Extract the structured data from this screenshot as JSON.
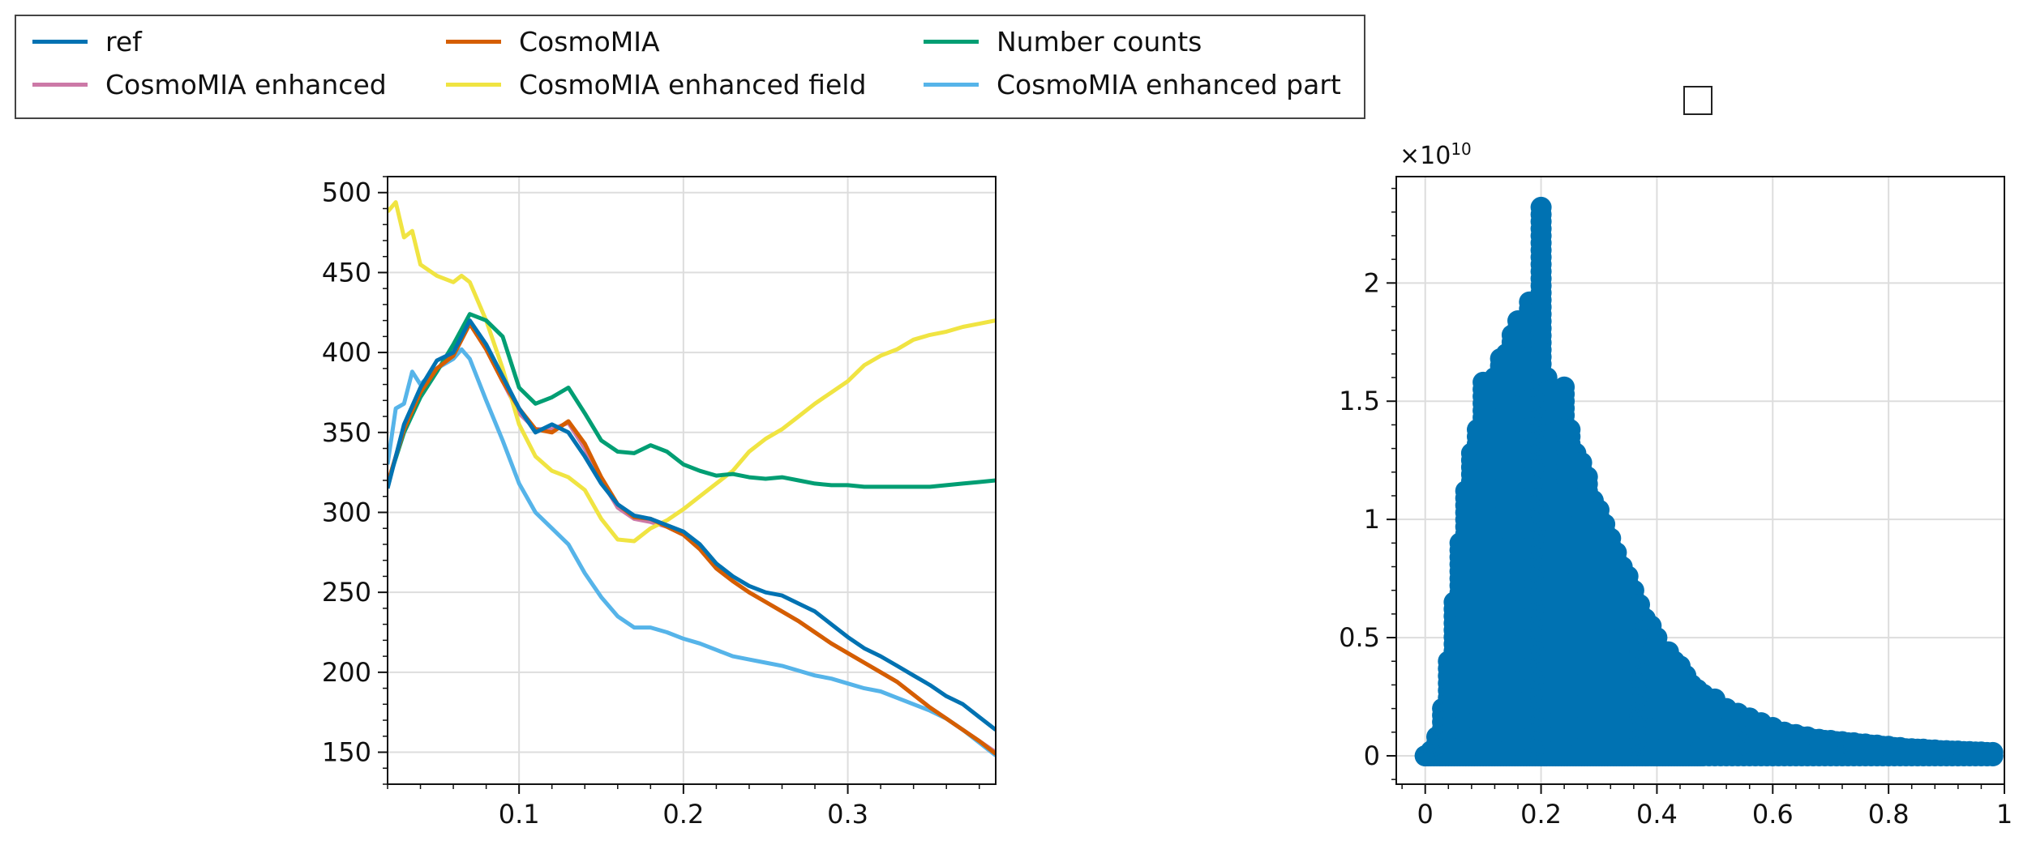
{
  "legend": {
    "entries": [
      {
        "label": "ref",
        "color": "#0072B2"
      },
      {
        "label": "CosmoMIA enhanced",
        "color": "#CC79A7"
      },
      {
        "label": "CosmoMIA",
        "color": "#D55E00"
      },
      {
        "label": "CosmoMIA enhanced field",
        "color": "#F0E442"
      },
      {
        "label": "Number counts",
        "color": "#009E73"
      },
      {
        "label": "CosmoMIA enhanced part",
        "color": "#56B4E9"
      }
    ]
  },
  "chart_data": [
    {
      "type": "line",
      "xlim": [
        0.02,
        0.39
      ],
      "ylim": [
        130,
        510
      ],
      "xticks": [
        0.1,
        0.2,
        0.3
      ],
      "xtick_labels": [
        "0.1",
        "0.2",
        "0.3"
      ],
      "yticks": [
        150,
        200,
        250,
        300,
        350,
        400,
        450,
        500
      ],
      "ytick_labels": [
        "150",
        "200",
        "250",
        "300",
        "350",
        "400",
        "450",
        "500"
      ],
      "grid": true,
      "series": [
        {
          "name": "ref",
          "color": "#0072B2",
          "x": [
            0.02,
            0.03,
            0.04,
            0.05,
            0.06,
            0.07,
            0.08,
            0.09,
            0.1,
            0.11,
            0.12,
            0.13,
            0.14,
            0.15,
            0.16,
            0.17,
            0.18,
            0.19,
            0.2,
            0.21,
            0.22,
            0.23,
            0.24,
            0.25,
            0.26,
            0.27,
            0.28,
            0.29,
            0.3,
            0.31,
            0.32,
            0.33,
            0.34,
            0.35,
            0.36,
            0.37,
            0.38,
            0.39
          ],
          "y": [
            315,
            355,
            378,
            395,
            400,
            420,
            405,
            385,
            365,
            350,
            355,
            350,
            335,
            318,
            305,
            298,
            296,
            292,
            288,
            280,
            268,
            260,
            254,
            250,
            248,
            243,
            238,
            230,
            222,
            215,
            210,
            204,
            198,
            192,
            185,
            180,
            172,
            164
          ]
        },
        {
          "name": "CosmoMIA enhanced",
          "color": "#CC79A7",
          "x": [
            0.02,
            0.03,
            0.04,
            0.05,
            0.06,
            0.07,
            0.08,
            0.09,
            0.1,
            0.11,
            0.12,
            0.13,
            0.14,
            0.15,
            0.16,
            0.17,
            0.18,
            0.19,
            0.2,
            0.21,
            0.22,
            0.23,
            0.24,
            0.25,
            0.26,
            0.27,
            0.28,
            0.29,
            0.3,
            0.31,
            0.32,
            0.33,
            0.34,
            0.35,
            0.36,
            0.37,
            0.38,
            0.39
          ],
          "y": [
            318,
            352,
            375,
            390,
            398,
            418,
            402,
            382,
            362,
            352,
            352,
            356,
            340,
            320,
            303,
            296,
            294,
            291,
            286,
            277,
            265,
            257,
            250,
            244,
            238,
            232,
            225,
            218,
            212,
            206,
            200,
            194,
            186,
            178,
            171,
            164,
            157,
            150
          ]
        },
        {
          "name": "CosmoMIA",
          "color": "#D55E00",
          "x": [
            0.02,
            0.03,
            0.04,
            0.05,
            0.06,
            0.07,
            0.08,
            0.09,
            0.1,
            0.11,
            0.12,
            0.13,
            0.14,
            0.15,
            0.16,
            0.17,
            0.18,
            0.19,
            0.2,
            0.21,
            0.22,
            0.23,
            0.24,
            0.25,
            0.26,
            0.27,
            0.28,
            0.29,
            0.3,
            0.31,
            0.32,
            0.33,
            0.34,
            0.35,
            0.36,
            0.37,
            0.38,
            0.39
          ],
          "y": [
            318,
            352,
            375,
            390,
            398,
            418,
            402,
            382,
            365,
            352,
            350,
            357,
            343,
            322,
            305,
            297,
            296,
            291,
            286,
            277,
            265,
            257,
            250,
            244,
            238,
            232,
            225,
            218,
            212,
            206,
            200,
            194,
            186,
            178,
            171,
            164,
            157,
            149
          ]
        },
        {
          "name": "CosmoMIA enhanced field",
          "color": "#F0E442",
          "x": [
            0.02,
            0.025,
            0.03,
            0.035,
            0.04,
            0.05,
            0.06,
            0.065,
            0.07,
            0.08,
            0.09,
            0.1,
            0.11,
            0.12,
            0.13,
            0.14,
            0.15,
            0.16,
            0.17,
            0.18,
            0.19,
            0.2,
            0.21,
            0.22,
            0.23,
            0.24,
            0.25,
            0.26,
            0.27,
            0.28,
            0.29,
            0.3,
            0.31,
            0.32,
            0.33,
            0.34,
            0.35,
            0.36,
            0.37,
            0.38,
            0.39
          ],
          "y": [
            488,
            494,
            472,
            476,
            455,
            448,
            444,
            448,
            444,
            420,
            390,
            355,
            335,
            326,
            322,
            314,
            296,
            283,
            282,
            290,
            295,
            302,
            310,
            318,
            326,
            338,
            346,
            352,
            360,
            368,
            375,
            382,
            392,
            398,
            402,
            408,
            411,
            413,
            416,
            418,
            420
          ]
        },
        {
          "name": "Number counts",
          "color": "#009E73",
          "x": [
            0.02,
            0.03,
            0.04,
            0.05,
            0.06,
            0.07,
            0.08,
            0.09,
            0.1,
            0.11,
            0.12,
            0.13,
            0.14,
            0.15,
            0.16,
            0.17,
            0.18,
            0.19,
            0.2,
            0.21,
            0.22,
            0.23,
            0.24,
            0.25,
            0.26,
            0.27,
            0.28,
            0.29,
            0.3,
            0.31,
            0.32,
            0.33,
            0.34,
            0.35,
            0.36,
            0.37,
            0.38,
            0.39
          ],
          "y": [
            318,
            350,
            372,
            388,
            405,
            424,
            420,
            410,
            378,
            368,
            372,
            378,
            362,
            345,
            338,
            337,
            342,
            338,
            330,
            326,
            323,
            324,
            322,
            321,
            322,
            320,
            318,
            317,
            317,
            316,
            316,
            316,
            316,
            316,
            317,
            318,
            319,
            320
          ]
        },
        {
          "name": "CosmoMIA enhanced part",
          "color": "#56B4E9",
          "x": [
            0.02,
            0.025,
            0.03,
            0.035,
            0.04,
            0.05,
            0.06,
            0.065,
            0.07,
            0.08,
            0.09,
            0.1,
            0.11,
            0.12,
            0.13,
            0.14,
            0.15,
            0.16,
            0.17,
            0.18,
            0.19,
            0.2,
            0.21,
            0.22,
            0.23,
            0.24,
            0.25,
            0.26,
            0.27,
            0.28,
            0.29,
            0.3,
            0.31,
            0.32,
            0.33,
            0.34,
            0.35,
            0.36,
            0.37,
            0.38,
            0.39
          ],
          "y": [
            330,
            365,
            368,
            388,
            380,
            390,
            396,
            402,
            396,
            370,
            345,
            318,
            300,
            290,
            280,
            262,
            247,
            235,
            228,
            228,
            225,
            221,
            218,
            214,
            210,
            208,
            206,
            204,
            201,
            198,
            196,
            193,
            190,
            188,
            184,
            180,
            176,
            171,
            164,
            156,
            148
          ]
        }
      ]
    },
    {
      "type": "scatter",
      "xlim": [
        -0.05,
        1.0
      ],
      "ylim": [
        -0.12,
        2.45
      ],
      "xticks": [
        0,
        0.2,
        0.4,
        0.6,
        0.8,
        1
      ],
      "xtick_labels": [
        "0",
        "0.2",
        "0.4",
        "0.6",
        "0.8",
        "1"
      ],
      "yticks": [
        0,
        0.5,
        1,
        1.5,
        2
      ],
      "ytick_labels": [
        "0",
        "0.5",
        "1",
        "1.5",
        "2"
      ],
      "y_scale_label": "×10",
      "y_scale_exponent": "10",
      "title_box": "",
      "grid": true,
      "marker_color": "#0072B2",
      "series": [
        {
          "points": [
            [
              0.0,
              0.0
            ],
            [
              0.01,
              0.02
            ],
            [
              0.02,
              0.08
            ],
            [
              0.03,
              0.2
            ],
            [
              0.04,
              0.4
            ],
            [
              0.05,
              0.65
            ],
            [
              0.06,
              0.9
            ],
            [
              0.07,
              1.12
            ],
            [
              0.08,
              1.28
            ],
            [
              0.09,
              1.38
            ],
            [
              0.1,
              1.58
            ],
            [
              0.11,
              1.5
            ],
            [
              0.12,
              1.6
            ],
            [
              0.13,
              1.68
            ],
            [
              0.14,
              1.7
            ],
            [
              0.15,
              1.78
            ],
            [
              0.16,
              1.84
            ],
            [
              0.17,
              1.76
            ],
            [
              0.18,
              1.92
            ],
            [
              0.19,
              1.76
            ],
            [
              0.2,
              2.32
            ],
            [
              0.21,
              1.6
            ],
            [
              0.22,
              1.55
            ],
            [
              0.23,
              1.5
            ],
            [
              0.24,
              1.56
            ],
            [
              0.25,
              1.38
            ],
            [
              0.26,
              1.28
            ],
            [
              0.27,
              1.24
            ],
            [
              0.28,
              1.18
            ],
            [
              0.29,
              1.08
            ],
            [
              0.3,
              1.04
            ],
            [
              0.31,
              0.98
            ],
            [
              0.32,
              0.92
            ],
            [
              0.33,
              0.86
            ],
            [
              0.34,
              0.8
            ],
            [
              0.35,
              0.76
            ],
            [
              0.36,
              0.7
            ],
            [
              0.37,
              0.64
            ],
            [
              0.38,
              0.58
            ],
            [
              0.39,
              0.55
            ],
            [
              0.4,
              0.5
            ],
            [
              0.41,
              0.44
            ],
            [
              0.42,
              0.44
            ],
            [
              0.43,
              0.4
            ],
            [
              0.44,
              0.38
            ],
            [
              0.45,
              0.34
            ],
            [
              0.46,
              0.3
            ],
            [
              0.47,
              0.28
            ],
            [
              0.48,
              0.26
            ],
            [
              0.5,
              0.24
            ],
            [
              0.52,
              0.2
            ],
            [
              0.54,
              0.18
            ],
            [
              0.56,
              0.16
            ],
            [
              0.58,
              0.14
            ],
            [
              0.6,
              0.12
            ],
            [
              0.62,
              0.1
            ],
            [
              0.64,
              0.09
            ],
            [
              0.66,
              0.08
            ],
            [
              0.68,
              0.07
            ],
            [
              0.7,
              0.065
            ],
            [
              0.72,
              0.06
            ],
            [
              0.74,
              0.055
            ],
            [
              0.76,
              0.05
            ],
            [
              0.78,
              0.045
            ],
            [
              0.8,
              0.04
            ],
            [
              0.82,
              0.035
            ],
            [
              0.84,
              0.03
            ],
            [
              0.86,
              0.028
            ],
            [
              0.88,
              0.025
            ],
            [
              0.9,
              0.022
            ],
            [
              0.92,
              0.02
            ],
            [
              0.94,
              0.018
            ],
            [
              0.96,
              0.016
            ],
            [
              0.98,
              0.014
            ]
          ]
        }
      ]
    }
  ]
}
